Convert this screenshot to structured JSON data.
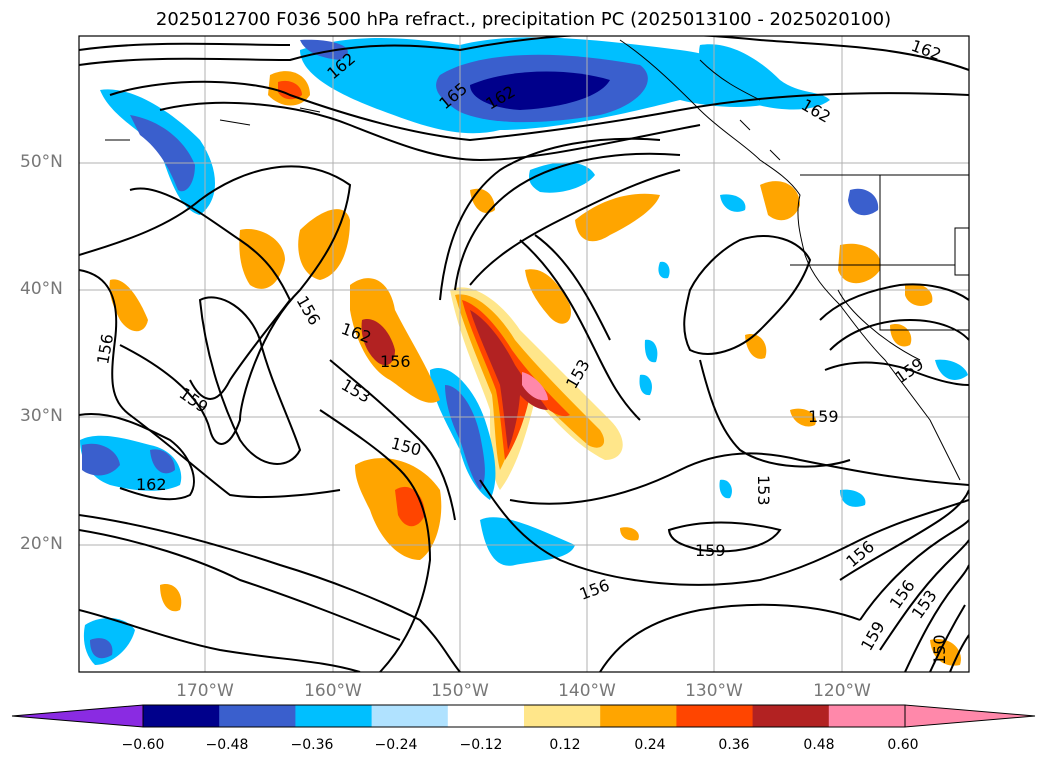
{
  "title": "2025012700 F036 500 hPa refract., precipitation PC (2025013100 - 2025020100)",
  "lat_labels": [
    "50°N",
    "40°N",
    "30°N",
    "20°N"
  ],
  "lon_labels": [
    "170°W",
    "160°W",
    "150°W",
    "140°W",
    "130°W",
    "120°W"
  ],
  "contour_labels": [
    "156",
    "159",
    "162",
    "153",
    "150",
    "153",
    "156",
    "159",
    "162",
    "165",
    "162",
    "156",
    "159",
    "153",
    "156",
    "159",
    "162",
    "150",
    "153",
    "156",
    "159",
    "153",
    "156"
  ],
  "colorbar": {
    "ticks": [
      "−0.60",
      "−0.48",
      "−0.36",
      "−0.24",
      "−0.12",
      "0.12",
      "0.24",
      "0.36",
      "0.48",
      "0.60"
    ],
    "colors": [
      "#8a2be2",
      "#00008b",
      "#3a5fcd",
      "#00bfff",
      "#b0e2ff",
      "#ffffff",
      "#ffe68a",
      "#ffa500",
      "#ff4500",
      "#b22222",
      "#ff88aa",
      "#ff88aa"
    ]
  },
  "colors": {
    "neg_strong": "#00008b",
    "neg_med": "#3a5fcd",
    "neg_light": "#00bfff",
    "neg_pale": "#b0e2ff",
    "pos_pale": "#ffe68a",
    "pos_light": "#ffa500",
    "pos_med": "#ff4500",
    "pos_strong": "#b22222",
    "pos_max": "#ff88aa"
  }
}
